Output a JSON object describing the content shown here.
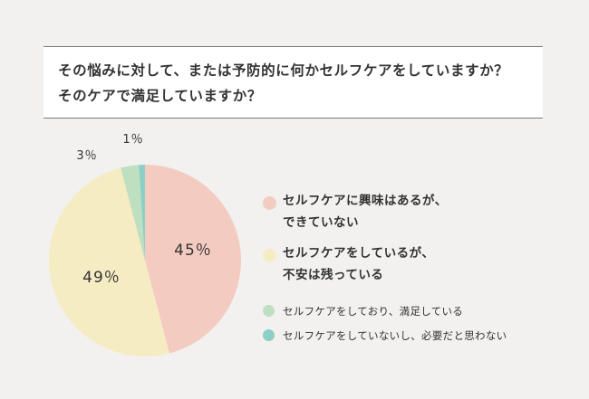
{
  "question": {
    "line1": "その悩みに対して、または予防的に何かセルフケアをしていますか？",
    "line2": "そのケアで満足していますか？"
  },
  "chart_data": {
    "type": "pie",
    "slices": [
      {
        "label": "セルフケアに興味はあるが、\nできていない",
        "value": 45,
        "display": "45％",
        "color": "#f3cbc1"
      },
      {
        "label": "セルフケアをしているが、\n不安は残っている",
        "value": 49,
        "display": "49％",
        "color": "#f6ecc4"
      },
      {
        "label": "セルフケアをしており、満足している",
        "value": 3,
        "display": "3％",
        "color": "#bfe0c0"
      },
      {
        "label": "セルフケアをしていないし、必要だと思わない",
        "value": 1,
        "display": "1％",
        "color": "#8ccfc6"
      }
    ],
    "start": "top, clockwise",
    "legend_position": "right"
  }
}
